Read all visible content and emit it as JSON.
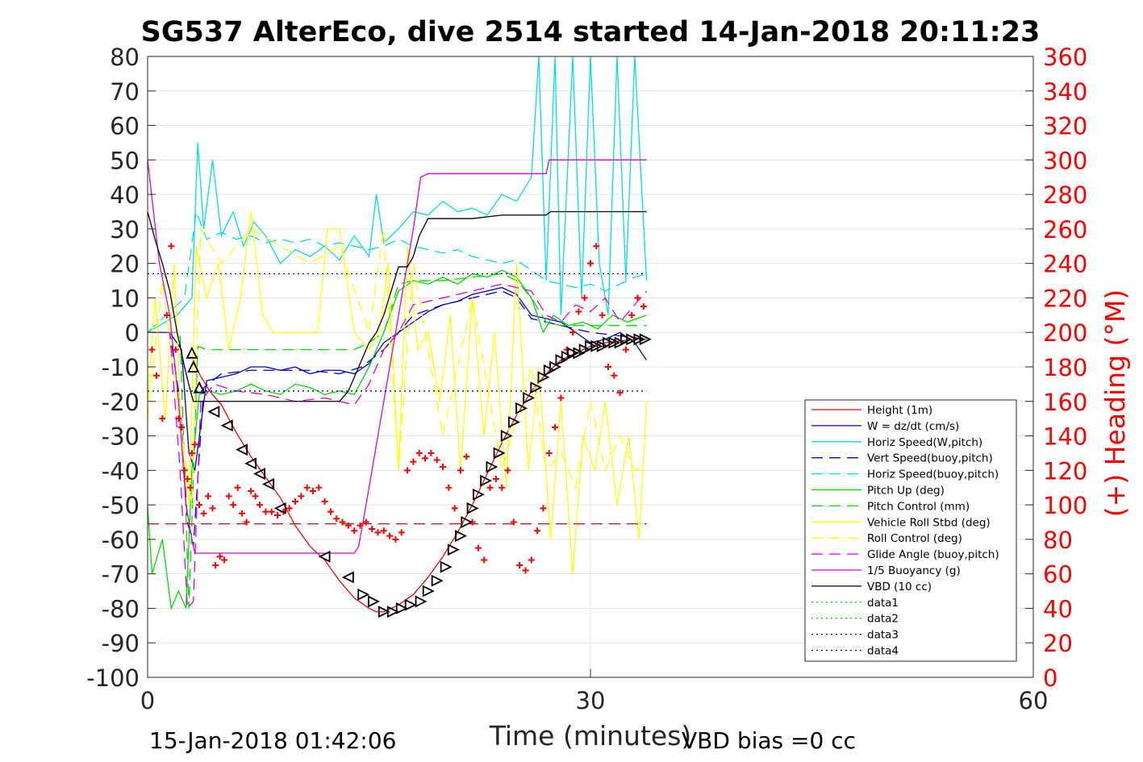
{
  "chart_data": {
    "type": "line",
    "title": "SG537 AlterEco, dive 2514 started 14-Jan-2018 20:11:23",
    "xlabel": "Time (minutes)",
    "ylabel": "",
    "y2label": "(+) Heading (°M)",
    "xlim": [
      0,
      60
    ],
    "ylim": [
      -100,
      80
    ],
    "y2lim": [
      0,
      360
    ],
    "xticks": [
      "0",
      "30",
      "60"
    ],
    "yticks": [
      "80",
      "70",
      "60",
      "50",
      "40",
      "30",
      "20",
      "10",
      "0",
      "-10",
      "-20",
      "-30",
      "-40",
      "-50",
      "-60",
      "-70",
      "-80",
      "-90",
      "-100"
    ],
    "y2ticks": [
      "360",
      "340",
      "320",
      "300",
      "280",
      "260",
      "240",
      "220",
      "200",
      "180",
      "160",
      "140",
      "120",
      "100",
      "80",
      "60",
      "40",
      "20",
      "0"
    ],
    "grid": true,
    "legend_position": "lower-right",
    "footer_left": "15-Jan-2018 01:42:06",
    "footer_right": "VBD bias =0 cc",
    "colors": {
      "red": "#ff0000",
      "blue": "#0000cc",
      "cyan": "#00e0e0",
      "green": "#00dd00",
      "yellow": "#ffff00",
      "magenta": "#e000e0",
      "black": "#000000",
      "navy": "#000080"
    },
    "series": [
      {
        "name": "Height (1m)",
        "color": "#ff0000",
        "dash": "solid",
        "x": [
          3.0,
          3.5,
          4.2,
          5.0,
          6.0,
          7.0,
          8.0,
          9.0,
          10.0,
          11.0,
          12.0,
          13.0,
          14.0,
          15.0,
          15.5,
          16.0,
          16.5,
          17.0,
          18.0,
          19.0,
          20.0,
          21.0,
          22.0,
          23.0,
          24.0,
          25.0,
          26.0,
          27.0,
          28.0,
          29.0,
          30.0,
          31.0,
          32.0,
          33.0,
          33.8
        ],
        "y": [
          -7,
          -12,
          -17,
          -21,
          -29,
          -36,
          -42,
          -48,
          -56,
          -62,
          -66,
          -72,
          -77,
          -80,
          -81,
          -81,
          -80,
          -79,
          -76,
          -71,
          -65,
          -58,
          -50,
          -41,
          -32,
          -24,
          -17,
          -12,
          -8,
          -6,
          -4,
          -3,
          -2.5,
          -2,
          -2
        ]
      },
      {
        "name": "W = dz/dt (cm/s)",
        "color": "#0000cc",
        "dash": "solid",
        "x": [
          0,
          1.5,
          2.3,
          2.8,
          3.2,
          4.0,
          5.0,
          6.0,
          7.0,
          8.0,
          9.0,
          10.0,
          11.0,
          12.0,
          13.0,
          14.0,
          15.0,
          16.0,
          17.0,
          18.0,
          19.0,
          20.0,
          21.0,
          22.0,
          23.0,
          24.0,
          25.0,
          26.0,
          27.0,
          28.0,
          29.0,
          30.0,
          31.0,
          32.0,
          33.0,
          33.8
        ],
        "y": [
          0,
          0,
          -5,
          -35,
          -40,
          -14,
          -13,
          -12,
          -10,
          -10,
          -11,
          -10,
          -12,
          -11,
          -11,
          -12,
          -9,
          -3,
          0,
          3,
          6,
          8,
          9,
          11,
          12,
          13,
          11,
          5,
          4,
          3,
          0,
          -3,
          -2,
          0,
          -3,
          -8
        ]
      },
      {
        "name": "Horiz Speed(W,pitch)",
        "color": "#00e0e0",
        "dash": "solid",
        "x": [
          0,
          2.0,
          3.0,
          3.4,
          3.8,
          4.4,
          5.0,
          5.8,
          6.5,
          7.2,
          8.0,
          9.0,
          10.0,
          11.0,
          12.0,
          13.0,
          14.0,
          15.0,
          15.5,
          16.0,
          17.0,
          18.0,
          19.0,
          20.0,
          21.0,
          22.0,
          23.0,
          24.0,
          25.0,
          26.0,
          26.5,
          27.0,
          27.6,
          28.0,
          28.8,
          29.4,
          30.0,
          30.6,
          31.2,
          31.8,
          32.4,
          33.0,
          33.8
        ],
        "y": [
          0,
          5,
          10,
          55,
          30,
          50,
          28,
          35,
          25,
          32,
          28,
          20,
          24,
          22,
          25,
          21,
          28,
          22,
          40,
          26,
          30,
          35,
          34,
          38,
          35,
          36,
          34,
          40,
          38,
          45,
          80,
          15,
          80,
          5,
          80,
          10,
          80,
          20,
          5,
          80,
          15,
          80,
          15
        ]
      },
      {
        "name": "Vert Speed(buoy,pitch)",
        "color": "#0000cc",
        "dash": "dashed",
        "x": [
          0,
          1.5,
          2.2,
          2.7,
          3.1,
          3.8,
          5.0,
          7.0,
          9.0,
          11.0,
          13.0,
          14.5,
          16.0,
          17.0,
          18.0,
          20.0,
          22.0,
          24.0,
          25.0,
          26.0,
          27.0,
          28.0,
          30.0,
          32.0,
          33.8
        ],
        "y": [
          0,
          0,
          -20,
          -55,
          -62,
          -16,
          -12,
          -11,
          -11,
          -11,
          -12,
          -10,
          -5,
          0,
          5,
          8,
          10,
          12,
          10,
          4,
          3,
          2,
          0,
          -1,
          -2
        ]
      },
      {
        "name": "Horiz Speed(buoy,pitch)",
        "color": "#00e0e0",
        "dash": "dashed",
        "x": [
          0,
          2.5,
          3.3,
          4.0,
          5.0,
          6.0,
          7.0,
          8.0,
          9.0,
          10.0,
          11.0,
          12.0,
          13.0,
          14.0,
          15.0,
          16.0,
          17.0,
          18.0,
          19.0,
          20.0,
          21.0,
          22.0,
          23.0,
          24.0,
          25.0,
          26.0,
          27.0,
          28.0,
          29.0,
          30.0,
          31.0,
          32.0,
          33.0,
          33.8
        ],
        "y": [
          0,
          10,
          35,
          27,
          29,
          27,
          28,
          26,
          27,
          26,
          27,
          25,
          26,
          25,
          24,
          25,
          27,
          25,
          24,
          23,
          24,
          22,
          21,
          20,
          21,
          18,
          15,
          14,
          13,
          14,
          12,
          14,
          16,
          17
        ]
      },
      {
        "name": "Pitch Up (deg)",
        "color": "#00dd00",
        "dash": "solid",
        "x": [
          0,
          0.3,
          1.0,
          1.6,
          2.1,
          2.6,
          3.0,
          3.5,
          4.2,
          5.0,
          6.0,
          7.0,
          8.0,
          9.0,
          10.0,
          11.0,
          12.0,
          13.0,
          14.0,
          15.0,
          16.0,
          17.0,
          18.0,
          19.0,
          20.0,
          21.0,
          22.0,
          23.0,
          24.0,
          25.0,
          26.0,
          26.8,
          27.5,
          28.5,
          29.5,
          30.5,
          31.5,
          32.5,
          33.8
        ],
        "y": [
          -50,
          -70,
          -60,
          -80,
          -75,
          -80,
          -40,
          -18,
          -17,
          -18,
          -17,
          -15,
          -17,
          -18,
          -15,
          -16,
          -18,
          -17,
          -18,
          -10,
          0,
          12,
          15,
          14,
          16,
          14,
          17,
          16,
          18,
          16,
          10,
          0,
          5,
          2,
          3,
          1,
          5,
          3,
          5
        ]
      },
      {
        "name": "Pitch Control (mm)",
        "color": "#00dd00",
        "dash": "dashed",
        "x": [
          0,
          2.2,
          2.8,
          3.4,
          4.0,
          6.0,
          8.0,
          10.0,
          12.0,
          14.0,
          15.0,
          16.0,
          17.0,
          18.0,
          20.0,
          22.0,
          24.0,
          25.0,
          26.0,
          27.0,
          28.0,
          30.0,
          32.0,
          33.8
        ],
        "y": [
          0,
          0,
          -80,
          -4,
          -5,
          -5,
          -5,
          -5,
          -5,
          -5,
          -3,
          0,
          14,
          15,
          15,
          16,
          17,
          15,
          10,
          3,
          2,
          2,
          2,
          2
        ]
      },
      {
        "name": "Vehicle Roll Stbd (deg)",
        "color": "#ffff00",
        "dash": "solid",
        "x": [
          0,
          0.5,
          1.2,
          1.8,
          2.3,
          2.8,
          3.3,
          4.0,
          4.8,
          5.5,
          6.3,
          7.0,
          7.8,
          8.5,
          9.5,
          10.5,
          11.5,
          12.2,
          13.0,
          14.0,
          15.0,
          15.7,
          16.3,
          17.0,
          17.6,
          18.3,
          19.0,
          19.8,
          20.5,
          21.2,
          22.0,
          22.8,
          23.5,
          24.3,
          25.0,
          25.8,
          26.5,
          27.3,
          28.0,
          28.8,
          29.5,
          30.3,
          31.0,
          31.8,
          32.6,
          33.3,
          33.8
        ],
        "y": [
          -20,
          10,
          -25,
          20,
          -30,
          -50,
          25,
          10,
          20,
          -5,
          10,
          35,
          5,
          0,
          0,
          0,
          0,
          30,
          30,
          0,
          -5,
          0,
          20,
          -40,
          25,
          -5,
          0,
          -20,
          5,
          -40,
          10,
          -30,
          0,
          -45,
          20,
          -40,
          -10,
          -60,
          -20,
          -70,
          -30,
          -40,
          -20,
          -50,
          -30,
          -60,
          -20
        ]
      },
      {
        "name": "Roll Control (deg)",
        "color": "#ffff00",
        "dash": "dashed",
        "x": [
          0,
          1.0,
          2.0,
          3.0,
          3.6,
          5.0,
          7.0,
          9.0,
          11.0,
          13.0,
          15.0,
          16.0,
          17.0,
          18.0,
          20.0,
          22.0,
          24.0,
          26.0,
          27.0,
          28.0,
          29.0,
          30.0,
          31.0,
          32.0,
          33.0,
          33.8
        ],
        "y": [
          -25,
          15,
          -20,
          -50,
          30,
          20,
          30,
          25,
          20,
          25,
          0,
          30,
          -40,
          20,
          -30,
          10,
          -40,
          -10,
          -40,
          -35,
          -45,
          -20,
          -40,
          -30,
          -40,
          -39
        ]
      },
      {
        "name": "Glide Angle (buoy,pitch)",
        "color": "#e000e0",
        "dash": "dashed",
        "x": [
          0,
          1.5,
          2.2,
          2.7,
          3.1,
          3.6,
          4.5,
          6.0,
          8.0,
          10.0,
          12.0,
          14.0,
          15.0,
          16.0,
          17.0,
          18.0,
          20.0,
          22.0,
          24.0,
          26.0,
          27.0,
          28.0,
          29.0,
          30.0,
          31.0,
          32.0,
          33.0,
          33.8
        ],
        "y": [
          0,
          0,
          -40,
          -80,
          -78,
          -20,
          -15,
          -17,
          -18,
          -20,
          -19,
          -21,
          -15,
          -5,
          0,
          8,
          10,
          12,
          14,
          12,
          5,
          3,
          8,
          6,
          10,
          3,
          8,
          12
        ]
      },
      {
        "name": "1/5 Buoyancy (g)",
        "color": "#e000e0",
        "dash": "solid",
        "x": [
          0,
          0.8,
          1.5,
          2.1,
          2.6,
          3.0,
          3.2,
          14.0,
          14.3,
          15.0,
          16.0,
          17.0,
          18.0,
          18.5,
          19.0,
          20.0,
          21.0,
          22.0,
          22.3,
          24.0,
          26.0,
          27.0,
          27.2,
          28.0,
          30.0,
          33.8
        ],
        "y": [
          50,
          20,
          5,
          -20,
          -50,
          -60,
          -64,
          -64,
          -62,
          -45,
          -20,
          5,
          30,
          45,
          46,
          46,
          46,
          46,
          46,
          46,
          46,
          46,
          50,
          50,
          50,
          50
        ]
      },
      {
        "name": "VBD (10 cc)",
        "color": "#000000",
        "dash": "solid",
        "x": [
          0,
          0.5,
          1.0,
          1.5,
          2.0,
          2.5,
          2.9,
          3.1,
          13.0,
          13.6,
          14.3,
          15.0,
          15.5,
          16.0,
          16.5,
          17.0,
          17.6,
          18.0,
          18.4,
          19.0,
          20.0,
          22.0,
          24.0,
          25.0,
          27.0,
          27.3,
          30.0,
          33.8
        ],
        "y": [
          35,
          27,
          20,
          12,
          0,
          -10,
          -17,
          -20,
          -20,
          -17,
          -10,
          -3,
          0,
          5,
          12,
          19,
          19,
          22,
          28,
          33,
          33,
          33,
          34,
          34,
          34,
          35,
          35,
          35
        ]
      },
      {
        "name": "data1",
        "color": "#00dd00",
        "dash": "dotted",
        "x": [],
        "y": []
      },
      {
        "name": "data2",
        "color": "#00dd00",
        "dash": "dotted",
        "x": [],
        "y": []
      },
      {
        "name": "data3",
        "color": "#000080",
        "dash": "dotted",
        "x": [
          0,
          33.8
        ],
        "y": [
          17,
          17
        ]
      },
      {
        "name": "data4",
        "color": "#000080",
        "dash": "dotted",
        "x": [
          0,
          33.8
        ],
        "y": [
          -17,
          -17
        ]
      }
    ],
    "reference_lines": [
      {
        "axis": "y2",
        "value": 89,
        "color": "#dd0000",
        "dash": "dashed",
        "x": [
          0,
          33.8
        ]
      }
    ],
    "heading_points": {
      "axis": "y2",
      "color": "#ff0000",
      "x": [
        0.3,
        0.6,
        1.0,
        1.3,
        1.6,
        1.9,
        2.1,
        2.3,
        2.5,
        2.7,
        2.9,
        3.0,
        3.2,
        3.5,
        3.8,
        4.1,
        4.4,
        4.6,
        4.9,
        5.2,
        5.5,
        5.8,
        6.1,
        6.4,
        6.7,
        7.0,
        7.3,
        7.6,
        8.0,
        8.4,
        8.8,
        9.2,
        9.6,
        10.0,
        10.4,
        10.8,
        11.2,
        11.6,
        12.0,
        12.4,
        12.8,
        13.2,
        13.6,
        14.0,
        14.4,
        14.8,
        15.2,
        15.6,
        16.0,
        16.4,
        16.8,
        17.2,
        17.6,
        18.0,
        18.4,
        18.8,
        19.2,
        19.6,
        20.0,
        20.4,
        20.8,
        21.2,
        21.6,
        22.0,
        22.4,
        22.8,
        23.2,
        23.6,
        24.0,
        24.4,
        24.8,
        25.2,
        25.6,
        26.0,
        26.4,
        26.8,
        27.2,
        27.6,
        28.0,
        28.4,
        28.8,
        29.2,
        29.6,
        30.0,
        30.4,
        30.8,
        31.2,
        31.6,
        32.0,
        32.4,
        32.8,
        33.2,
        33.6
      ],
      "y": [
        190,
        175,
        150,
        210,
        250,
        190,
        150,
        145,
        120,
        115,
        110,
        130,
        135,
        100,
        95,
        105,
        98,
        65,
        70,
        68,
        105,
        100,
        110,
        95,
        90,
        108,
        105,
        100,
        96,
        96,
        94,
        96,
        98,
        102,
        105,
        110,
        108,
        110,
        102,
        96,
        92,
        90,
        88,
        85,
        88,
        90,
        86,
        84,
        85,
        82,
        80,
        84,
        120,
        125,
        130,
        127,
        130,
        126,
        122,
        110,
        98,
        120,
        128,
        90,
        75,
        68,
        110,
        115,
        110,
        120,
        90,
        65,
        62,
        68,
        85,
        98,
        130,
        145,
        162,
        190,
        200,
        212,
        220,
        240,
        250,
        210,
        180,
        175,
        165,
        190,
        210,
        220,
        215
      ]
    },
    "markers": {
      "color": "#000000",
      "x": [
        3.0,
        3.1,
        3.5,
        4.5,
        5.4,
        6.4,
        7.0,
        7.6,
        8.2,
        9.0,
        12.0,
        13.6,
        14.6,
        15.3,
        16.0,
        16.6,
        17.2,
        17.8,
        18.5,
        19.0,
        19.6,
        20.2,
        20.7,
        21.2,
        21.6,
        22.0,
        22.4,
        22.9,
        23.3,
        23.8,
        24.3,
        24.8,
        25.3,
        25.8,
        26.3,
        26.8,
        27.2,
        27.6,
        28.0,
        28.4,
        28.8,
        29.2,
        29.6,
        30.0,
        30.4,
        30.8,
        31.2,
        31.6,
        32.0,
        32.4,
        32.8,
        33.3,
        33.7
      ],
      "y": [
        -6,
        -10,
        -16,
        -23,
        -27,
        -34,
        -38,
        -41,
        -44,
        -51,
        -65,
        -71,
        -76,
        -78,
        -81,
        -81,
        -80,
        -79,
        -78,
        -75,
        -72,
        -68,
        -63,
        -59,
        -55,
        -51,
        -47,
        -43,
        -39,
        -35,
        -30,
        -26,
        -22,
        -19,
        -16,
        -13,
        -11,
        -10,
        -8,
        -7,
        -6,
        -6,
        -5,
        -4,
        -4,
        -4,
        -3,
        -3,
        -3,
        -2,
        -2,
        -2,
        -2
      ]
    }
  }
}
